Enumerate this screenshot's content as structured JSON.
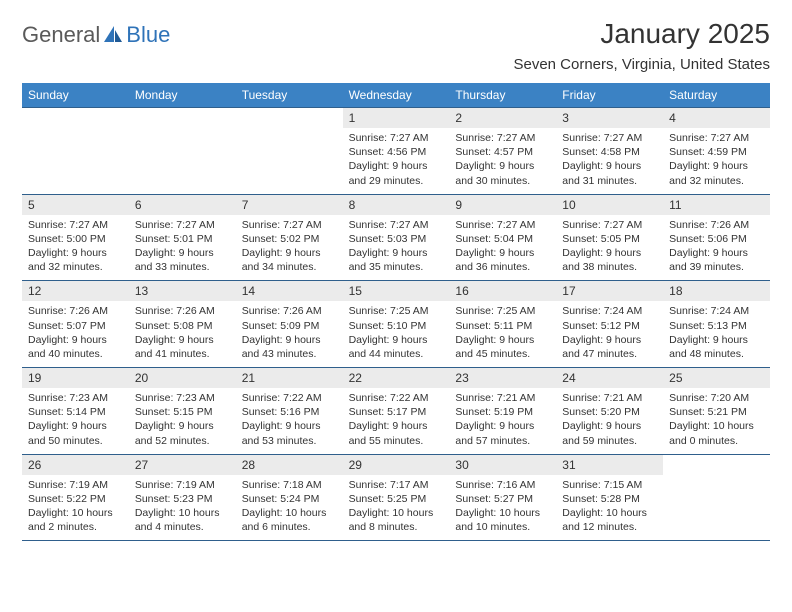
{
  "logo": {
    "part1": "General",
    "part2": "Blue"
  },
  "title": "January 2025",
  "location": "Seven Corners, Virginia, United States",
  "colors": {
    "header_bg": "#3b82c4",
    "header_text": "#ffffff",
    "row_rule": "#2f5f8c",
    "daynum_bg": "#ebebeb",
    "page_bg": "#ffffff",
    "text": "#333333",
    "logo_gray": "#5a5a5a",
    "logo_blue": "#2f73b8"
  },
  "dow": [
    "Sunday",
    "Monday",
    "Tuesday",
    "Wednesday",
    "Thursday",
    "Friday",
    "Saturday"
  ],
  "weeks": [
    [
      null,
      null,
      null,
      {
        "n": "1",
        "sunrise": "7:27 AM",
        "sunset": "4:56 PM",
        "day_h": "9",
        "day_m": "29"
      },
      {
        "n": "2",
        "sunrise": "7:27 AM",
        "sunset": "4:57 PM",
        "day_h": "9",
        "day_m": "30"
      },
      {
        "n": "3",
        "sunrise": "7:27 AM",
        "sunset": "4:58 PM",
        "day_h": "9",
        "day_m": "31"
      },
      {
        "n": "4",
        "sunrise": "7:27 AM",
        "sunset": "4:59 PM",
        "day_h": "9",
        "day_m": "32"
      }
    ],
    [
      {
        "n": "5",
        "sunrise": "7:27 AM",
        "sunset": "5:00 PM",
        "day_h": "9",
        "day_m": "32"
      },
      {
        "n": "6",
        "sunrise": "7:27 AM",
        "sunset": "5:01 PM",
        "day_h": "9",
        "day_m": "33"
      },
      {
        "n": "7",
        "sunrise": "7:27 AM",
        "sunset": "5:02 PM",
        "day_h": "9",
        "day_m": "34"
      },
      {
        "n": "8",
        "sunrise": "7:27 AM",
        "sunset": "5:03 PM",
        "day_h": "9",
        "day_m": "35"
      },
      {
        "n": "9",
        "sunrise": "7:27 AM",
        "sunset": "5:04 PM",
        "day_h": "9",
        "day_m": "36"
      },
      {
        "n": "10",
        "sunrise": "7:27 AM",
        "sunset": "5:05 PM",
        "day_h": "9",
        "day_m": "38"
      },
      {
        "n": "11",
        "sunrise": "7:26 AM",
        "sunset": "5:06 PM",
        "day_h": "9",
        "day_m": "39"
      }
    ],
    [
      {
        "n": "12",
        "sunrise": "7:26 AM",
        "sunset": "5:07 PM",
        "day_h": "9",
        "day_m": "40"
      },
      {
        "n": "13",
        "sunrise": "7:26 AM",
        "sunset": "5:08 PM",
        "day_h": "9",
        "day_m": "41"
      },
      {
        "n": "14",
        "sunrise": "7:26 AM",
        "sunset": "5:09 PM",
        "day_h": "9",
        "day_m": "43"
      },
      {
        "n": "15",
        "sunrise": "7:25 AM",
        "sunset": "5:10 PM",
        "day_h": "9",
        "day_m": "44"
      },
      {
        "n": "16",
        "sunrise": "7:25 AM",
        "sunset": "5:11 PM",
        "day_h": "9",
        "day_m": "45"
      },
      {
        "n": "17",
        "sunrise": "7:24 AM",
        "sunset": "5:12 PM",
        "day_h": "9",
        "day_m": "47"
      },
      {
        "n": "18",
        "sunrise": "7:24 AM",
        "sunset": "5:13 PM",
        "day_h": "9",
        "day_m": "48"
      }
    ],
    [
      {
        "n": "19",
        "sunrise": "7:23 AM",
        "sunset": "5:14 PM",
        "day_h": "9",
        "day_m": "50"
      },
      {
        "n": "20",
        "sunrise": "7:23 AM",
        "sunset": "5:15 PM",
        "day_h": "9",
        "day_m": "52"
      },
      {
        "n": "21",
        "sunrise": "7:22 AM",
        "sunset": "5:16 PM",
        "day_h": "9",
        "day_m": "53"
      },
      {
        "n": "22",
        "sunrise": "7:22 AM",
        "sunset": "5:17 PM",
        "day_h": "9",
        "day_m": "55"
      },
      {
        "n": "23",
        "sunrise": "7:21 AM",
        "sunset": "5:19 PM",
        "day_h": "9",
        "day_m": "57"
      },
      {
        "n": "24",
        "sunrise": "7:21 AM",
        "sunset": "5:20 PM",
        "day_h": "9",
        "day_m": "59"
      },
      {
        "n": "25",
        "sunrise": "7:20 AM",
        "sunset": "5:21 PM",
        "day_h": "10",
        "day_m": "0"
      }
    ],
    [
      {
        "n": "26",
        "sunrise": "7:19 AM",
        "sunset": "5:22 PM",
        "day_h": "10",
        "day_m": "2"
      },
      {
        "n": "27",
        "sunrise": "7:19 AM",
        "sunset": "5:23 PM",
        "day_h": "10",
        "day_m": "4"
      },
      {
        "n": "28",
        "sunrise": "7:18 AM",
        "sunset": "5:24 PM",
        "day_h": "10",
        "day_m": "6"
      },
      {
        "n": "29",
        "sunrise": "7:17 AM",
        "sunset": "5:25 PM",
        "day_h": "10",
        "day_m": "8"
      },
      {
        "n": "30",
        "sunrise": "7:16 AM",
        "sunset": "5:27 PM",
        "day_h": "10",
        "day_m": "10"
      },
      {
        "n": "31",
        "sunrise": "7:15 AM",
        "sunset": "5:28 PM",
        "day_h": "10",
        "day_m": "12"
      },
      null
    ]
  ],
  "labels": {
    "sunrise": "Sunrise:",
    "sunset": "Sunset:",
    "daylight": "Daylight:",
    "hours": "hours",
    "and": "and",
    "minutes": "minutes."
  }
}
